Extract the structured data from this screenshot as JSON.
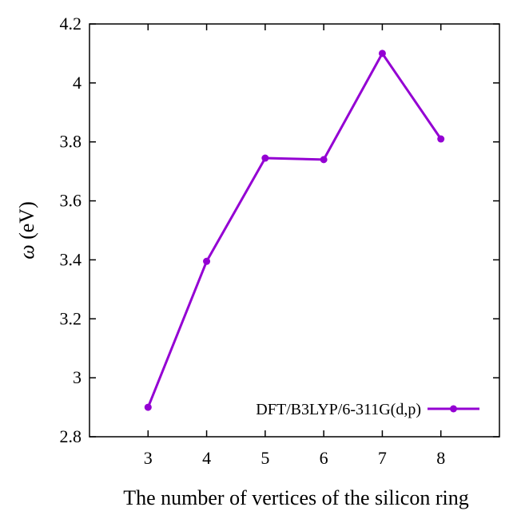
{
  "chart_data": {
    "type": "line",
    "xlabel": "The number of vertices of the silicon ring",
    "ylabel": "ω (eV)",
    "xlim": [
      2,
      9
    ],
    "ylim": [
      2.8,
      4.2
    ],
    "xticks": [
      3,
      4,
      5,
      6,
      7,
      8
    ],
    "yticks": [
      2.8,
      3.0,
      3.2,
      3.4,
      3.6,
      3.8,
      4.0,
      4.2
    ],
    "ytick_labels": [
      "2.8",
      "3",
      "3.2",
      "3.4",
      "3.6",
      "3.8",
      "4",
      "4.2"
    ],
    "xtick_labels": [
      "3",
      "4",
      "5",
      "6",
      "7",
      "8"
    ],
    "grid": false,
    "legend_position": "bottom-right",
    "series": [
      {
        "name": "DFT/B3LYP/6-311G(d,p)",
        "color": "#9400d3",
        "x": [
          3,
          4,
          5,
          6,
          7,
          8
        ],
        "y": [
          2.9,
          3.395,
          3.745,
          3.74,
          4.1,
          3.81
        ]
      }
    ]
  }
}
